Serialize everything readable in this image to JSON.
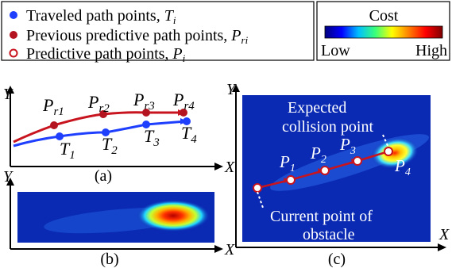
{
  "legend": {
    "items": [
      {
        "text": "Traveled path points, ",
        "sym": "T",
        "sub": "i",
        "marker": "blue-dot"
      },
      {
        "text": "Previous predictive path points, ",
        "sym": "P",
        "sub": "ri",
        "marker": "red-dot"
      },
      {
        "text": "Predictive path points, ",
        "sym": "P",
        "sub": "i",
        "marker": "open-red-dot"
      }
    ]
  },
  "colorbar": {
    "title": "Cost",
    "low_label": "Low",
    "high_label": "High",
    "colors": [
      "#00007f",
      "#0000ff",
      "#00bfff",
      "#39ff7a",
      "#ffff00",
      "#ff7f00",
      "#ff0000",
      "#7f0000"
    ]
  },
  "panel_a": {
    "caption": "(a)",
    "x_axis_label": "X",
    "y_axis_label": "Y",
    "traveled_labels": [
      {
        "sym": "T",
        "sub": "1"
      },
      {
        "sym": "T",
        "sub": "2"
      },
      {
        "sym": "T",
        "sub": "3"
      },
      {
        "sym": "T",
        "sub": "4"
      }
    ],
    "previous_labels": [
      {
        "sym": "P",
        "sub": "r1"
      },
      {
        "sym": "P",
        "sub": "r2"
      },
      {
        "sym": "P",
        "sub": "r3"
      },
      {
        "sym": "P",
        "sub": "r4"
      }
    ],
    "traveled_color": "#1f3fff",
    "previous_color": "#c8141e"
  },
  "panel_b": {
    "caption": "(b)",
    "x_axis_label": "X",
    "y_axis_label": "Y",
    "background_color": "#0a2ab4"
  },
  "panel_c": {
    "caption": "(c)",
    "x_axis_label": "X",
    "y_axis_label": "Y",
    "background_color": "#0a2ab4",
    "predictive_labels": [
      {
        "sym": "P",
        "sub": "1"
      },
      {
        "sym": "P",
        "sub": "2"
      },
      {
        "sym": "P",
        "sub": "3"
      },
      {
        "sym": "P",
        "sub": "4"
      }
    ],
    "expected_collision_line1": "Expected",
    "expected_collision_line2": "collision point",
    "current_point_line1": "Current point of",
    "current_point_line2": "obstacle"
  }
}
